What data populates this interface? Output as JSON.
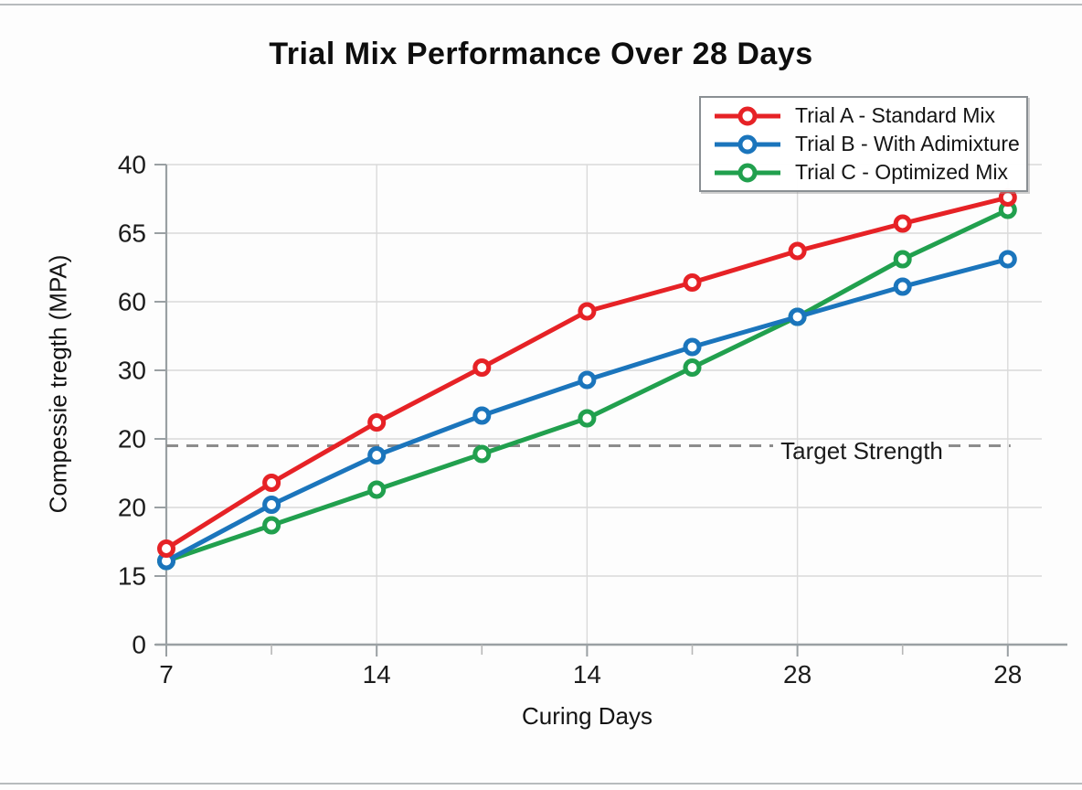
{
  "chart_data": {
    "type": "line",
    "title": "Trial Mix Performance Over 28 Days",
    "xlabel": "Curing Days",
    "ylabel": "Compessie tregth (MPA)",
    "x_tick_labels": [
      "7",
      "14",
      "14",
      "28",
      "28"
    ],
    "y_tick_labels_top_to_bottom": [
      "40",
      "65",
      "60",
      "30",
      "20",
      "20",
      "15",
      "0"
    ],
    "grid": true,
    "legend_position": "top-right",
    "ylim": [
      0,
      35
    ],
    "units_per_gridline": 5,
    "series": [
      {
        "name": "Trial A - Standard Mix",
        "color": "#e62226",
        "values": [
          7.0,
          11.8,
          16.2,
          20.2,
          24.3,
          26.4,
          28.7,
          30.7,
          32.6
        ]
      },
      {
        "name": "Trial B - With Adimixture",
        "color": "#1b75bc",
        "values": [
          6.1,
          10.2,
          13.8,
          16.7,
          19.3,
          21.7,
          23.9,
          26.1,
          28.1
        ]
      },
      {
        "name": "Trial C - Optimized Mix",
        "color": "#21a04e",
        "values": [
          6.1,
          8.7,
          11.3,
          13.9,
          16.5,
          20.2,
          23.9,
          28.1,
          31.7
        ]
      }
    ],
    "target_line": {
      "label": "Target Strength",
      "value": 14.5,
      "color": "#8c8c8c",
      "style": "dashed"
    }
  }
}
